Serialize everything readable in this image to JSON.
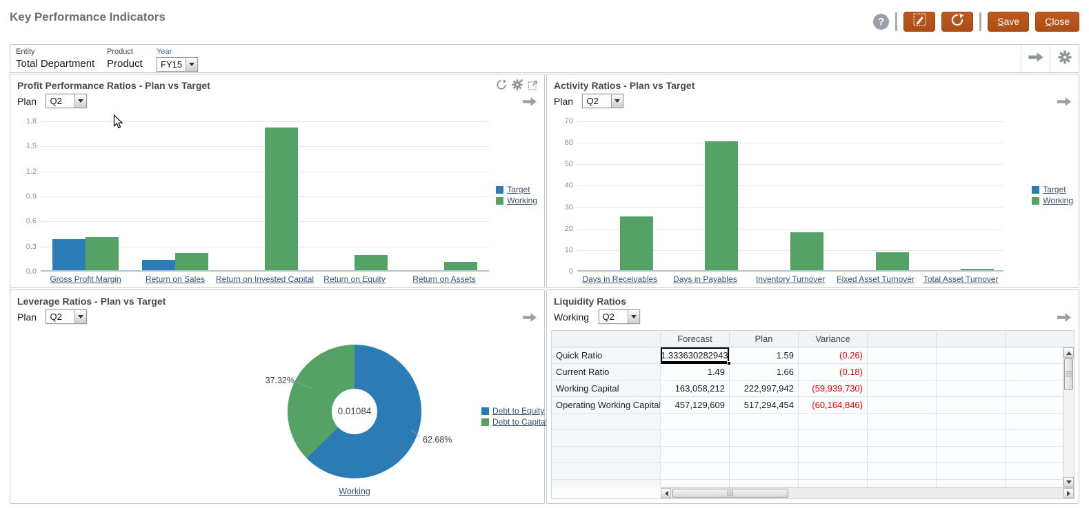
{
  "header": {
    "title": "Key Performance Indicators",
    "help_glyph": "?",
    "save_label": "Save",
    "close_label": "Close"
  },
  "pov": {
    "items": [
      {
        "label": "Entity",
        "value": "Total Department"
      },
      {
        "label": "Product",
        "value": "Product"
      },
      {
        "label": "Year",
        "value": "FY15",
        "is_dropdown": true
      }
    ]
  },
  "panels": [
    {
      "control_label": "Plan",
      "control_value": "Q2"
    },
    {
      "control_label": "Plan",
      "control_value": "Q2"
    },
    {
      "control_label": "Plan",
      "control_value": "Q2"
    },
    {
      "control_label": "Working",
      "control_value": "Q2"
    }
  ],
  "icons": {
    "help": "question-circle",
    "edit": "pencil-dashed-box",
    "refresh": "circular-arrow",
    "pov_advance": "right-arrow",
    "pov_settings": "gear",
    "panel_refresh": "circular-arrow",
    "panel_settings": "gear-sparkle",
    "panel_maximize": "expand-dashed-box",
    "panel_drill": "right-arrow",
    "pointer": "mouse-cursor"
  },
  "colors": {
    "accent_orange": "#b5521b",
    "bar_blue": "#2b7bb4",
    "bar_green": "#55a266",
    "link_navy": "#3a536d",
    "variance_red": "#e60000"
  },
  "chart_data": [
    {
      "type": "bar",
      "title": "Profit Performance Ratios - Plan vs Target",
      "categories": [
        "Gross Profit Margin",
        "Return on Sales",
        "Return on Invested Capital",
        "Return on Equity",
        "Return on Assets"
      ],
      "series": [
        {
          "name": "Target",
          "color": "#2b7bb4",
          "values": [
            0.37,
            0.12,
            0,
            0,
            0
          ]
        },
        {
          "name": "Working",
          "color": "#55a266",
          "values": [
            0.4,
            0.21,
            1.71,
            0.18,
            0.1
          ]
        }
      ],
      "ylim": [
        0,
        1.8
      ],
      "yticks": [
        "0.0",
        "0.3",
        "0.6",
        "0.9",
        "1.2",
        "1.5",
        "1.8"
      ],
      "grid": true,
      "legend_position": "right"
    },
    {
      "type": "bar",
      "title": "Activity Ratios - Plan vs Target",
      "categories": [
        "Days in Receivables",
        "Days in Payables",
        "Inventory Turnover",
        "Fixed Asset Turnover",
        "Total Asset Turnover"
      ],
      "series": [
        {
          "name": "Target",
          "color": "#2b7bb4",
          "values": [
            0,
            0,
            0,
            0,
            0
          ]
        },
        {
          "name": "Working",
          "color": "#55a266",
          "values": [
            25,
            60,
            17.5,
            8.5,
            0.5
          ]
        }
      ],
      "ylim": [
        0,
        70
      ],
      "yticks": [
        "0",
        "10",
        "20",
        "30",
        "40",
        "50",
        "60",
        "70"
      ],
      "grid": true,
      "legend_position": "right"
    },
    {
      "type": "pie",
      "title": "Leverage Ratios - Plan vs Target",
      "slices": [
        {
          "name": "Debt to Equity",
          "value": 62.68,
          "label": "62.68%",
          "color": "#2b7bb4"
        },
        {
          "name": "Debt to Capital",
          "value": 37.32,
          "label": "37.32%",
          "color": "#55a266"
        }
      ],
      "center_label": "0.01084",
      "footer_link": "Working",
      "legend_position": "right"
    },
    {
      "type": "table",
      "title": "Liquidity Ratios",
      "columns": [
        "",
        "Forecast",
        "Plan",
        "Variance",
        "",
        "",
        ""
      ],
      "rows": [
        {
          "label": "Quick Ratio",
          "forecast": "1.333630282943",
          "plan": "1.59",
          "variance": "(0.26)"
        },
        {
          "label": "Current Ratio",
          "forecast": "1.49",
          "plan": "1.66",
          "variance": "(0.18)"
        },
        {
          "label": "Working Capital",
          "forecast": "163,058,212",
          "plan": "222,997,942",
          "variance": "(59,939,730)"
        },
        {
          "label": "Operating Working Capital",
          "forecast": "457,129,609",
          "plan": "517,294,454",
          "variance": "(60,164,846)"
        }
      ],
      "empty_rows": 5,
      "selected_cell": {
        "row": 0,
        "column": "forecast"
      }
    }
  ]
}
